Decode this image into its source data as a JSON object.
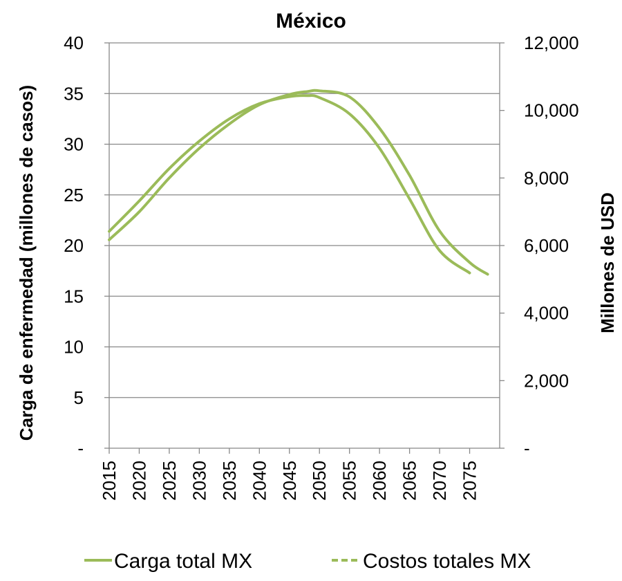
{
  "chart_data": {
    "type": "line",
    "title": "México",
    "ylabel": "Carga de enfermedad (millones de casos)",
    "y2label": "Millones de USD",
    "x_ticks": [
      "2015",
      "2020",
      "2025",
      "2030",
      "2035",
      "2040",
      "2045",
      "2050",
      "2055",
      "2060",
      "2065",
      "2070",
      "2075"
    ],
    "y_ticks": [
      "-",
      "5",
      "10",
      "15",
      "20",
      "25",
      "30",
      "35",
      "40"
    ],
    "y2_ticks": [
      "-",
      "2,000",
      "4,000",
      "6,000",
      "8,000",
      "10,000",
      "12,000"
    ],
    "ylim": [
      0,
      40
    ],
    "y2lim": [
      0,
      12000
    ],
    "xlim": [
      2015,
      2080
    ],
    "grid": true,
    "legend_position": "bottom",
    "x": [
      2015,
      2020,
      2025,
      2030,
      2035,
      2040,
      2045,
      2048,
      2050,
      2055,
      2060,
      2065,
      2070,
      2075,
      2078
    ],
    "series": [
      {
        "name": "Carga total MX",
        "axis": "left",
        "style": "solid",
        "color": "#9bbb59",
        "values": [
          21.4,
          24.4,
          27.6,
          30.3,
          32.5,
          34.0,
          34.7,
          34.8,
          34.6,
          33.0,
          29.6,
          24.6,
          19.5,
          17.3,
          null
        ]
      },
      {
        "name": "Costos totales MX",
        "axis": "right",
        "style": "dashed",
        "color": "#9bbb59",
        "values": [
          6170,
          7000,
          8000,
          8880,
          9600,
          10170,
          10470,
          10560,
          10580,
          10400,
          9470,
          8080,
          6430,
          5500,
          5150
        ]
      }
    ]
  }
}
